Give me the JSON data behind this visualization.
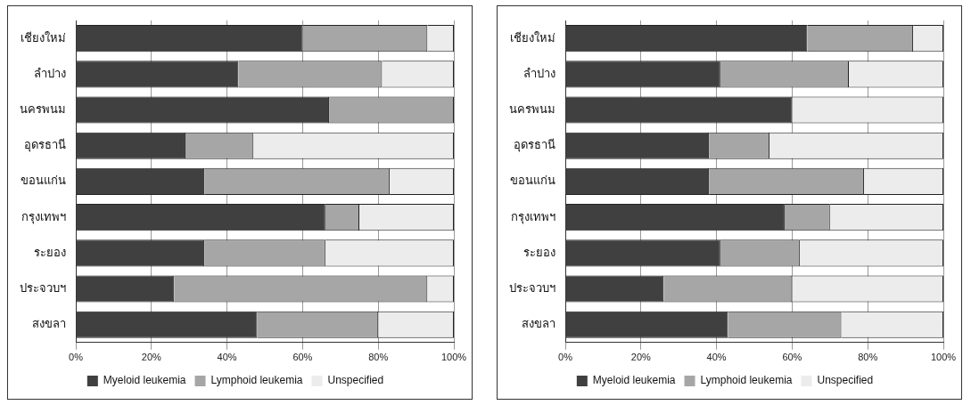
{
  "chart_data": [
    {
      "type": "bar",
      "orientation": "horizontal",
      "stacked": true,
      "categories": [
        "เชียงใหม่",
        "ลำปาง",
        "นครพนม",
        "อุดรธานี",
        "ขอนแก่น",
        "กรุงเทพฯ",
        "ระยอง",
        "ประจวบฯ",
        "สงขลา"
      ],
      "series": [
        {
          "name": "Myeloid leukemia",
          "color": "#404040",
          "values": [
            60,
            43,
            67,
            29,
            34,
            66,
            34,
            26,
            48
          ]
        },
        {
          "name": "Lymphoid leukemia",
          "color": "#a6a6a6",
          "values": [
            33,
            38,
            33,
            18,
            49,
            9,
            32,
            67,
            32
          ]
        },
        {
          "name": "Unspecified",
          "color": "#ececec",
          "values": [
            7,
            19,
            0,
            53,
            17,
            25,
            34,
            7,
            20
          ]
        }
      ],
      "xlim": [
        0,
        100
      ],
      "xticks": [
        {
          "value": 0,
          "label": "0%"
        },
        {
          "value": 20,
          "label": "20%"
        },
        {
          "value": 40,
          "label": "40%"
        },
        {
          "value": 60,
          "label": "60%"
        },
        {
          "value": 80,
          "label": "80%"
        },
        {
          "value": 100,
          "label": "100%"
        }
      ],
      "grid": "x",
      "legend": "bottom"
    },
    {
      "type": "bar",
      "orientation": "horizontal",
      "stacked": true,
      "categories": [
        "เชียงใหม่",
        "ลำปาง",
        "นครพนม",
        "อุดรธานี",
        "ขอนแก่น",
        "กรุงเทพฯ",
        "ระยอง",
        "ประจวบฯ",
        "สงขลา"
      ],
      "series": [
        {
          "name": "Myeloid leukemia",
          "color": "#404040",
          "values": [
            64,
            41,
            60,
            38,
            38,
            58,
            41,
            26,
            43
          ]
        },
        {
          "name": "Lymphoid leukemia",
          "color": "#a6a6a6",
          "values": [
            28,
            34,
            0,
            16,
            41,
            12,
            21,
            34,
            30
          ]
        },
        {
          "name": "Unspecified",
          "color": "#ececec",
          "values": [
            8,
            25,
            40,
            46,
            21,
            30,
            38,
            40,
            27
          ]
        }
      ],
      "xlim": [
        0,
        100
      ],
      "xticks": [
        {
          "value": 0,
          "label": "0%"
        },
        {
          "value": 20,
          "label": "20%"
        },
        {
          "value": 40,
          "label": "40%"
        },
        {
          "value": 60,
          "label": "60%"
        },
        {
          "value": 80,
          "label": "80%"
        },
        {
          "value": 100,
          "label": "100%"
        }
      ],
      "grid": "x",
      "legend": "bottom"
    }
  ]
}
